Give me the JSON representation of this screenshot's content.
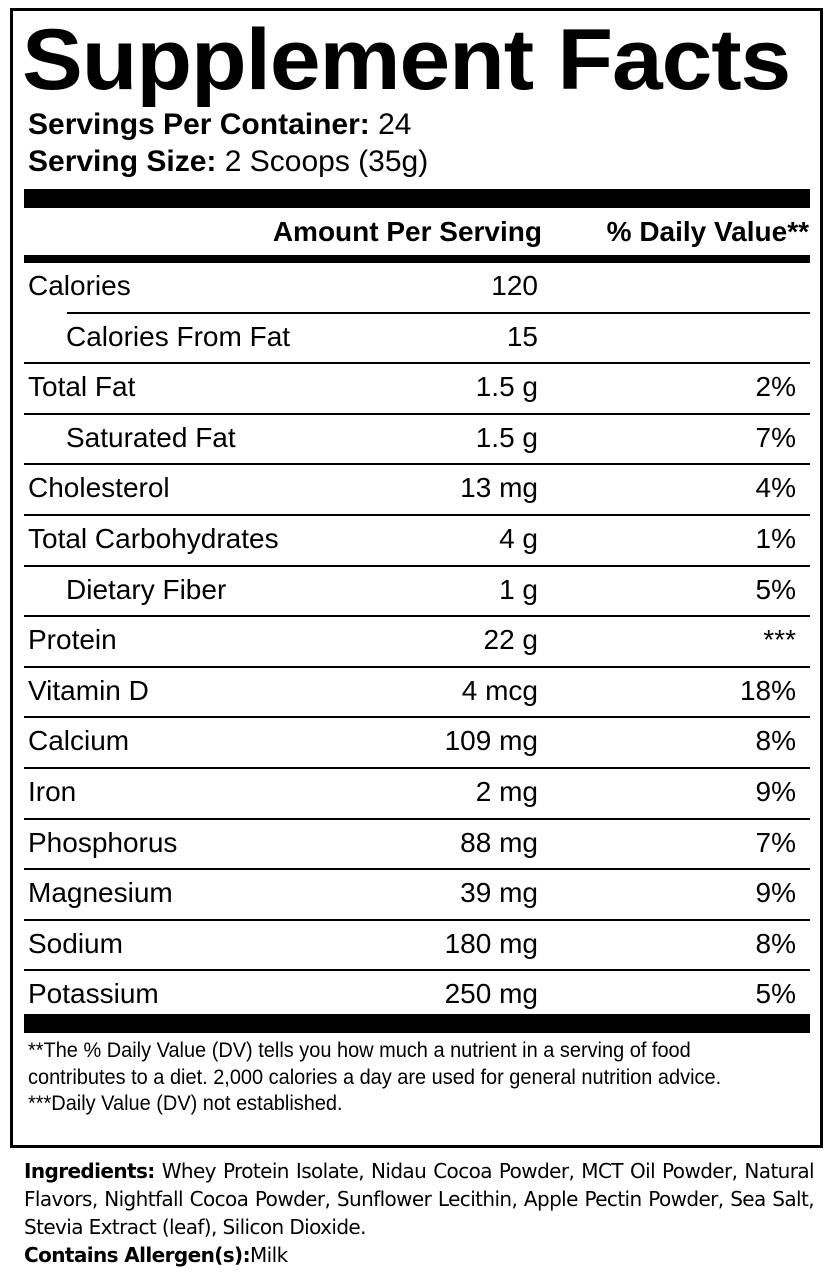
{
  "title": "Supplement Facts",
  "servings_per_container": {
    "label": "Servings Per Container:",
    "value": "24"
  },
  "serving_size": {
    "label": "Serving Size:",
    "value": "2 Scoops (35g)"
  },
  "header": {
    "amount": "Amount Per Serving",
    "dv": "% Daily Value**"
  },
  "rows": [
    {
      "name": "Calories",
      "amount": "120",
      "dv": ""
    },
    {
      "name": "Calories From Fat",
      "amount": "15",
      "dv": ""
    },
    {
      "name": "Total Fat",
      "amount": "1.5 g",
      "dv": "2%"
    },
    {
      "name": "Saturated Fat",
      "amount": "1.5 g",
      "dv": "7%"
    },
    {
      "name": "Cholesterol",
      "amount": "13 mg",
      "dv": "4%"
    },
    {
      "name": "Total Carbohydrates",
      "amount": "4 g",
      "dv": "1%"
    },
    {
      "name": "Dietary Fiber",
      "amount": "1 g",
      "dv": "5%"
    },
    {
      "name": "Protein",
      "amount": "22 g",
      "dv": "***"
    },
    {
      "name": "Vitamin D",
      "amount": "4 mcg",
      "dv": "18%"
    },
    {
      "name": "Calcium",
      "amount": "109 mg",
      "dv": "8%"
    },
    {
      "name": "Iron",
      "amount": "2 mg",
      "dv": "9%"
    },
    {
      "name": "Phosphorus",
      "amount": "88 mg",
      "dv": "7%"
    },
    {
      "name": "Magnesium",
      "amount": "39 mg",
      "dv": "9%"
    },
    {
      "name": "Sodium",
      "amount": "180 mg",
      "dv": "8%"
    },
    {
      "name": "Potassium",
      "amount": "250 mg",
      "dv": "5%"
    }
  ],
  "footnotes": [
    "**The % Daily Value (DV) tells you how much a nutrient in a serving of food contributes to a diet. 2,000 calories a day are used for general nutrition advice.",
    "***Daily Value (DV) not established."
  ],
  "ingredients": {
    "label": "Ingredients:",
    "text": "Whey Protein Isolate, Nidau Cocoa Powder, MCT Oil Powder, Natural Flavors, Nightfall Cocoa Powder, Sunflower Lecithin, Apple Pectin Powder, Sea Salt, Stevia Extract (leaf), Silicon Dioxide."
  },
  "allergens": {
    "label": "Contains Allergen(s):",
    "text": "Milk"
  }
}
